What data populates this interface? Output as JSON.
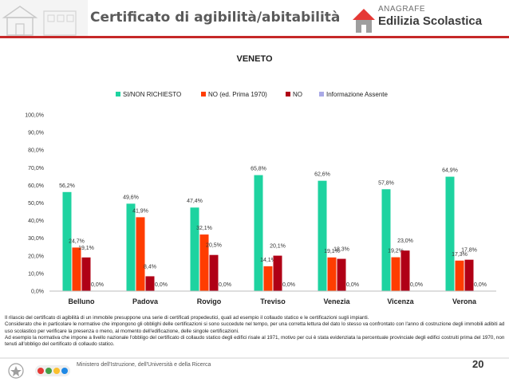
{
  "header": {
    "title": "Certificato di agibilità/abitabilità",
    "logo_small": "ANAGRAFE",
    "logo_big": "Edilizia Scolastica"
  },
  "chart_data": {
    "type": "bar",
    "title": "VENETO",
    "categories": [
      "Belluno",
      "Padova",
      "Rovigo",
      "Treviso",
      "Venezia",
      "Vicenza",
      "Verona"
    ],
    "series": [
      {
        "name": "SI/NON RICHIESTO",
        "color": "#1ed3a0",
        "values": [
          56.2,
          49.6,
          47.4,
          65.8,
          62.6,
          57.8,
          64.9
        ],
        "labels": [
          "56,2%",
          "49,6%",
          "47,4%",
          "65,8%",
          "62,6%",
          "57,8%",
          "64,9%"
        ]
      },
      {
        "name": "NO (ed. Prima 1970)",
        "color": "#ff3d00",
        "values": [
          24.7,
          41.9,
          32.1,
          14.1,
          19.1,
          19.2,
          17.3
        ],
        "labels": [
          "24,7%",
          "41,9%",
          "32,1%",
          "14,1%",
          "19,1%",
          "19,2%",
          "17,3%"
        ]
      },
      {
        "name": "NO",
        "color": "#b00016",
        "values": [
          19.1,
          8.4,
          20.5,
          20.1,
          18.3,
          23.0,
          17.8
        ],
        "labels": [
          "19,1%",
          "8,4%",
          "20,5%",
          "20,1%",
          "18,3%",
          "23,0%",
          "17,8%"
        ]
      },
      {
        "name": "Informazione Assente",
        "color": "#a9a9e6",
        "values": [
          0,
          0,
          0,
          0,
          0,
          0,
          0
        ],
        "labels": [
          "0,0%",
          "0,0%",
          "0,0%",
          "0,0%",
          "0,0%",
          "0,0%",
          "0,0%"
        ]
      }
    ],
    "yticks": [
      "0,0%",
      "10,0%",
      "20,0%",
      "30,0%",
      "40,0%",
      "50,0%",
      "60,0%",
      "70,0%",
      "80,0%",
      "90,0%",
      "100,0%"
    ],
    "ylim": [
      0,
      100
    ],
    "legend": "top",
    "grid": false
  },
  "footnote": [
    "Il rilascio del certificato di agibilità di un immobile presuppone una serie di certificati propedeutici, quali ad esempio il collaudo statico e le certificazioni sugli impianti.",
    "Considerato che in particolare le normative che impongono gli obblighi delle certificazioni si sono succedute nel tempo, per una corretta lettura del dato lo stesso va confrontato con l'anno di costruzione degli immobili adibiti ad uso scolastico per verificare la presenza o meno, al momento dell'edificazione, delle singole certificazioni.",
    "Ad esempio la normativa che impone a livello nazionale l'obbligo del certificato di collaudo statico degli edifici risale al 1971, motivo per cui è stata evidenziata la percentuale provinciale degli edifici costruiti prima del 1970, non tenuti all'obbligo del certificato di collaudo statico."
  ],
  "footer": {
    "ministry": "Ministero dell'Istruzione, dell'Università e della Ricerca",
    "page_number": "20"
  }
}
